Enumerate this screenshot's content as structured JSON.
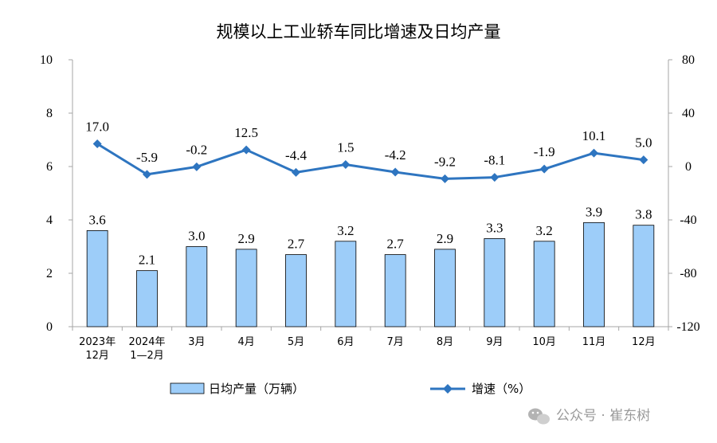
{
  "chart_data": {
    "type": "bar",
    "title": "规模以上工业轿车同比增速及日均产量",
    "categories": [
      [
        "2023年",
        "12月"
      ],
      [
        "2024年",
        "1—2月"
      ],
      [
        "3月"
      ],
      [
        "4月"
      ],
      [
        "5月"
      ],
      [
        "6月"
      ],
      [
        "7月"
      ],
      [
        "8月"
      ],
      [
        "9月"
      ],
      [
        "10月"
      ],
      [
        "11月"
      ],
      [
        "12月"
      ]
    ],
    "series": [
      {
        "name": "日均产量（万辆）",
        "type": "bar",
        "axis": "left",
        "color": "#9dcdf9",
        "values": [
          3.6,
          2.1,
          3.0,
          2.9,
          2.7,
          3.2,
          2.7,
          2.9,
          3.3,
          3.2,
          3.9,
          3.8
        ],
        "labels": [
          "3.6",
          "2.1",
          "3.0",
          "2.9",
          "2.7",
          "3.2",
          "2.7",
          "2.9",
          "3.3",
          "3.2",
          "3.9",
          "3.8"
        ]
      },
      {
        "name": "增速（%）",
        "type": "line",
        "axis": "right",
        "color": "#2e75c0",
        "values": [
          17.0,
          -5.9,
          -0.2,
          12.5,
          -4.4,
          1.5,
          -4.2,
          -9.2,
          -8.1,
          -1.9,
          10.1,
          5.0
        ],
        "labels": [
          "17.0",
          "-5.9",
          "-0.2",
          "12.5",
          "-4.4",
          "1.5",
          "-4.2",
          "-9.2",
          "-8.1",
          "-1.9",
          "10.1",
          "5.0"
        ]
      }
    ],
    "y_left": {
      "min": 0,
      "max": 10,
      "ticks": [
        "0",
        "2",
        "4",
        "6",
        "8",
        "10"
      ]
    },
    "y_right": {
      "min": -120,
      "max": 80,
      "ticks": [
        "-120",
        "-80",
        "-40",
        "0",
        "40",
        "80"
      ]
    },
    "grid": false,
    "legend_position": "bottom"
  },
  "watermark": {
    "text": "公众号 · 崔东树",
    "icon": "wechat-icon"
  }
}
